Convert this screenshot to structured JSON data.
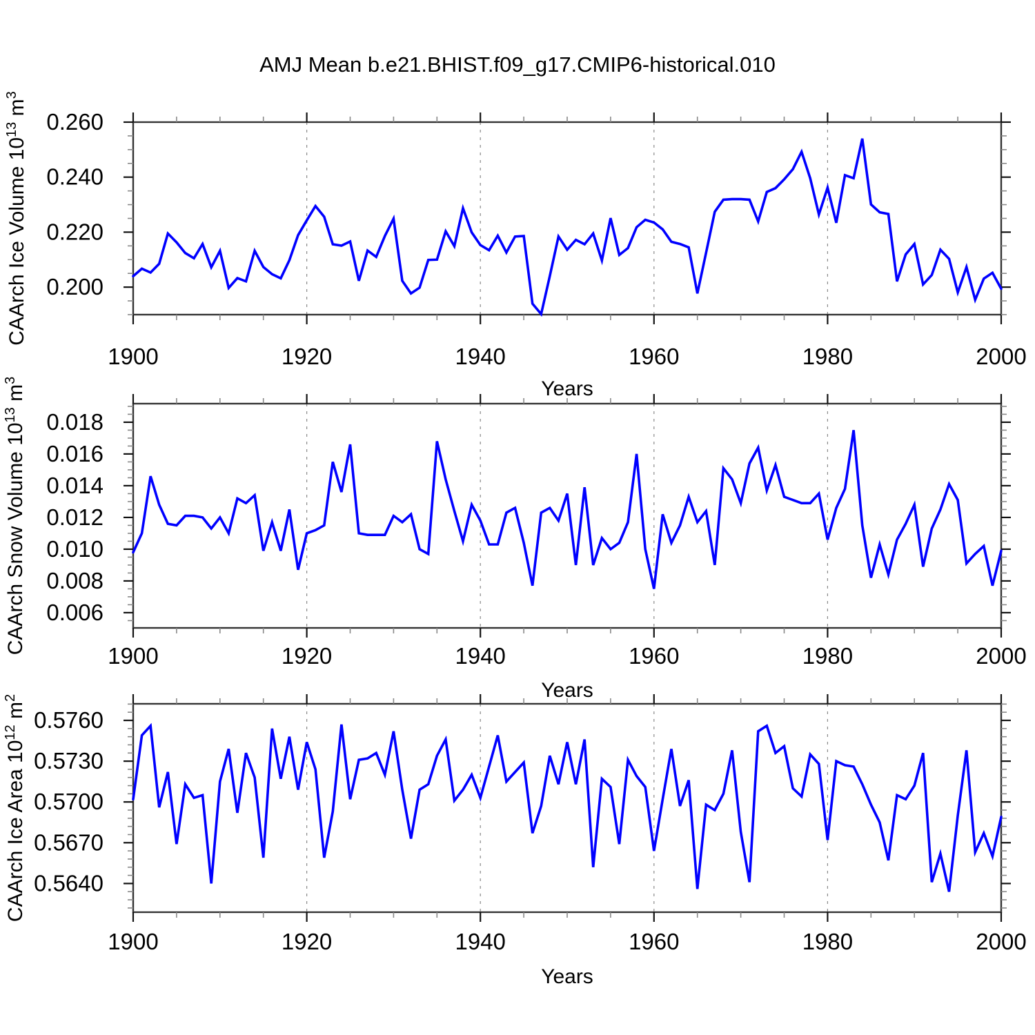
{
  "title": "AMJ Mean b.e21.BHIST.f09_g17.CMIP6-historical.010",
  "colors": {
    "series_line": "#0000ff",
    "frame": "#333333",
    "major_tick": "#111111",
    "minor_tick": "#888888",
    "gridline": "#888888",
    "text": "#000000"
  },
  "x_axis": {
    "label": "Years",
    "start": 1900,
    "end": 2000,
    "major_ticks": [
      1900,
      1920,
      1940,
      1960,
      1980,
      2000
    ],
    "minor_step": 5,
    "gridline_years": [
      1920,
      1940,
      1960,
      1980
    ]
  },
  "chart_data": [
    {
      "type": "line",
      "name": "caarch-ice-volume",
      "ylabel": "CAArch Ice Volume 10^13 m^3",
      "ylabel_parts": [
        {
          "t": "CAArch Ice Volume 10"
        },
        {
          "t": "13",
          "sup": true
        },
        {
          "t": " m"
        },
        {
          "t": "3",
          "sup": true
        }
      ],
      "xlabel": "Years",
      "yticks": [
        0.2,
        0.22,
        0.24,
        0.26
      ],
      "ytick_decimals": 3,
      "yminor_step": 0.005,
      "ylim": [
        0.19,
        0.26
      ],
      "x_start": 1900,
      "x_step": 1,
      "values": [
        0.204,
        0.2067,
        0.2053,
        0.2085,
        0.2195,
        0.2163,
        0.2124,
        0.2105,
        0.2157,
        0.2072,
        0.2132,
        0.1997,
        0.2033,
        0.2021,
        0.2132,
        0.2073,
        0.2047,
        0.2032,
        0.2098,
        0.2189,
        0.2243,
        0.2295,
        0.2256,
        0.2156,
        0.2151,
        0.2166,
        0.2023,
        0.2133,
        0.211,
        0.2186,
        0.2249,
        0.2023,
        0.1977,
        0.1998,
        0.2099,
        0.21,
        0.2203,
        0.2149,
        0.2287,
        0.2199,
        0.2153,
        0.2134,
        0.2187,
        0.2126,
        0.2184,
        0.2186,
        0.194,
        0.1902,
        0.204,
        0.2184,
        0.2136,
        0.2172,
        0.2156,
        0.2195,
        0.2097,
        0.2251,
        0.2117,
        0.2142,
        0.2218,
        0.2245,
        0.2235,
        0.221,
        0.2165,
        0.2157,
        0.2145,
        0.1977,
        0.2125,
        0.2274,
        0.2318,
        0.232,
        0.232,
        0.2318,
        0.2239,
        0.2346,
        0.236,
        0.2392,
        0.2429,
        0.2492,
        0.2396,
        0.2264,
        0.2362,
        0.2234,
        0.2407,
        0.2396,
        0.254,
        0.2301,
        0.2272,
        0.2266,
        0.2021,
        0.2119,
        0.2157,
        0.201,
        0.2044,
        0.2136,
        0.2103,
        0.1981,
        0.2073,
        0.1954,
        0.2031,
        0.2052,
        0.1994
      ]
    },
    {
      "type": "line",
      "name": "caarch-snow-volume",
      "ylabel": "CAArch Snow Volume 10^13 m^3",
      "ylabel_parts": [
        {
          "t": "CAArch Snow Volume 10"
        },
        {
          "t": "13",
          "sup": true
        },
        {
          "t": " m"
        },
        {
          "t": "3",
          "sup": true
        }
      ],
      "xlabel": "Years",
      "yticks": [
        0.006,
        0.008,
        0.01,
        0.012,
        0.014,
        0.016,
        0.018
      ],
      "ytick_decimals": 3,
      "yminor_step": 0.0005,
      "ylim": [
        0.00504,
        0.01917
      ],
      "x_start": 1900,
      "x_step": 1,
      "values": [
        0.0098,
        0.011,
        0.0146,
        0.0128,
        0.0116,
        0.0115,
        0.0121,
        0.0121,
        0.012,
        0.0113,
        0.012,
        0.011,
        0.0132,
        0.0129,
        0.0134,
        0.0099,
        0.0117,
        0.0099,
        0.0125,
        0.0087,
        0.011,
        0.0112,
        0.0115,
        0.0155,
        0.0136,
        0.0166,
        0.011,
        0.0109,
        0.0109,
        0.0109,
        0.0121,
        0.0117,
        0.0122,
        0.01,
        0.0097,
        0.0168,
        0.0144,
        0.0124,
        0.0105,
        0.0128,
        0.0118,
        0.0103,
        0.0103,
        0.0123,
        0.0126,
        0.0104,
        0.0077,
        0.0123,
        0.0126,
        0.0118,
        0.0135,
        0.009,
        0.0139,
        0.009,
        0.0107,
        0.01,
        0.0104,
        0.0117,
        0.016,
        0.01,
        0.0075,
        0.0122,
        0.0104,
        0.0115,
        0.0133,
        0.0117,
        0.0124,
        0.009,
        0.0151,
        0.0144,
        0.0129,
        0.0154,
        0.0164,
        0.0137,
        0.0153,
        0.0133,
        0.0131,
        0.0129,
        0.0129,
        0.0135,
        0.0106,
        0.0126,
        0.0138,
        0.0175,
        0.0115,
        0.0082,
        0.0103,
        0.0084,
        0.0106,
        0.0116,
        0.0128,
        0.0089,
        0.0113,
        0.0125,
        0.0141,
        0.0131,
        0.0091,
        0.0097,
        0.0102,
        0.0077,
        0.0099
      ]
    },
    {
      "type": "line",
      "name": "caarch-ice-area",
      "ylabel": "CAArch Ice Area 10^12 m^2",
      "ylabel_parts": [
        {
          "t": "CAArch Ice Area 10"
        },
        {
          "t": "12",
          "sup": true
        },
        {
          "t": " m"
        },
        {
          "t": "2",
          "sup": true
        }
      ],
      "xlabel": "Years",
      "yticks": [
        0.564,
        0.567,
        0.57,
        0.573,
        0.576
      ],
      "ytick_decimals": 4,
      "yminor_step": 0.0006,
      "ylim": [
        0.56189,
        0.57722
      ],
      "x_start": 1900,
      "x_step": 1,
      "values": [
        0.5702,
        0.5749,
        0.5756,
        0.5696,
        0.5722,
        0.5669,
        0.5713,
        0.5703,
        0.5705,
        0.564,
        0.5715,
        0.5739,
        0.5692,
        0.5736,
        0.5718,
        0.5659,
        0.5754,
        0.5717,
        0.5748,
        0.5709,
        0.5744,
        0.5724,
        0.5659,
        0.5693,
        0.5757,
        0.5702,
        0.5731,
        0.5732,
        0.5736,
        0.572,
        0.5752,
        0.5709,
        0.5673,
        0.5709,
        0.5713,
        0.5734,
        0.5746,
        0.5701,
        0.5709,
        0.572,
        0.5703,
        0.5726,
        0.5749,
        0.5715,
        0.5722,
        0.5729,
        0.5677,
        0.5697,
        0.5734,
        0.5713,
        0.5744,
        0.5713,
        0.5746,
        0.5652,
        0.5717,
        0.5711,
        0.5669,
        0.5731,
        0.5719,
        0.5711,
        0.5664,
        0.5702,
        0.5739,
        0.5697,
        0.5716,
        0.5636,
        0.5698,
        0.5694,
        0.5706,
        0.5738,
        0.5678,
        0.5641,
        0.5752,
        0.5756,
        0.5736,
        0.5741,
        0.571,
        0.5704,
        0.5735,
        0.5728,
        0.5672,
        0.573,
        0.5727,
        0.5726,
        0.5713,
        0.5698,
        0.5685,
        0.5657,
        0.5705,
        0.5702,
        0.5712,
        0.5736,
        0.5641,
        0.5662,
        0.5634,
        0.569,
        0.5738,
        0.5663,
        0.5677,
        0.566,
        0.5689
      ]
    }
  ]
}
